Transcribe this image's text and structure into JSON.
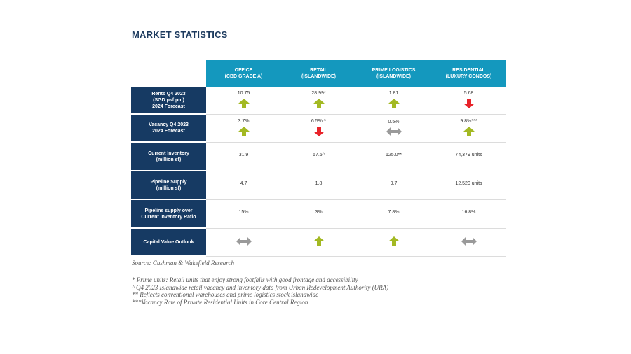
{
  "title": "MARKET STATISTICS",
  "columns": [
    {
      "name": "OFFICE",
      "sub": "(CBD GRADE A)"
    },
    {
      "name": "RETAIL",
      "sub": "(ISLANDWIDE)"
    },
    {
      "name": "PRIME LOGISTICS",
      "sub": "(ISLANDWIDE)"
    },
    {
      "name": "RESIDENTIAL",
      "sub": "(LUXURY CONDOS)"
    }
  ],
  "rows": [
    {
      "label_lines": [
        "Rents Q4 2023",
        "(SGD psf pm)",
        "2024 Forecast"
      ],
      "cells": [
        {
          "value": "10.75",
          "arrow": "up"
        },
        {
          "value": "28.99*",
          "arrow": "up"
        },
        {
          "value": "1.81",
          "arrow": "up"
        },
        {
          "value": "5.68",
          "arrow": "down"
        }
      ]
    },
    {
      "label_lines": [
        "Vacancy Q4 2023",
        "2024 Forecast"
      ],
      "cells": [
        {
          "value": "3.7%",
          "arrow": "up"
        },
        {
          "value": "6.5% ^",
          "arrow": "down"
        },
        {
          "value": "0.5%",
          "arrow": "flat"
        },
        {
          "value": "9.8%***",
          "arrow": "up"
        }
      ]
    },
    {
      "label_lines": [
        "Current Inventory",
        "(million sf)"
      ],
      "cells": [
        {
          "value": "31.9",
          "arrow": ""
        },
        {
          "value": "67.6^",
          "arrow": ""
        },
        {
          "value": "125.0**",
          "arrow": ""
        },
        {
          "value": "74,379 units",
          "arrow": ""
        }
      ]
    },
    {
      "label_lines": [
        "Pipeline Supply",
        "(million sf)"
      ],
      "cells": [
        {
          "value": "4.7",
          "arrow": ""
        },
        {
          "value": "1.8",
          "arrow": ""
        },
        {
          "value": "9.7",
          "arrow": ""
        },
        {
          "value": "12,520 units",
          "arrow": ""
        }
      ]
    },
    {
      "label_lines": [
        "Pipeline supply over",
        "Current Inventory Ratio"
      ],
      "cells": [
        {
          "value": "15%",
          "arrow": ""
        },
        {
          "value": "3%",
          "arrow": ""
        },
        {
          "value": "7.8%",
          "arrow": ""
        },
        {
          "value": "16.8%",
          "arrow": ""
        }
      ]
    },
    {
      "label_lines": [
        "Capital Value Outlook"
      ],
      "cells": [
        {
          "value": "",
          "arrow": "flat"
        },
        {
          "value": "",
          "arrow": "up"
        },
        {
          "value": "",
          "arrow": "up"
        },
        {
          "value": "",
          "arrow": "flat"
        }
      ]
    }
  ],
  "colors": {
    "up": "#a3b923",
    "down": "#e8232a",
    "flat": "#9a9a9a",
    "header": "#1498be",
    "rowhead": "#163a63"
  },
  "source": "Source: Cushman & Wakefield Research",
  "footnotes": [
    "* Prime units: Retail units that enjoy strong footfalls with good frontage and accessibility",
    "^ Q4 2023 Islandwide retail vacancy and inventory data from Urban Redevelopment Authority (URA)",
    "** Reflects conventional warehouses and prime logistics stock islandwide",
    "***Vacancy Rate of Private Residential Units in Core Central Region"
  ]
}
